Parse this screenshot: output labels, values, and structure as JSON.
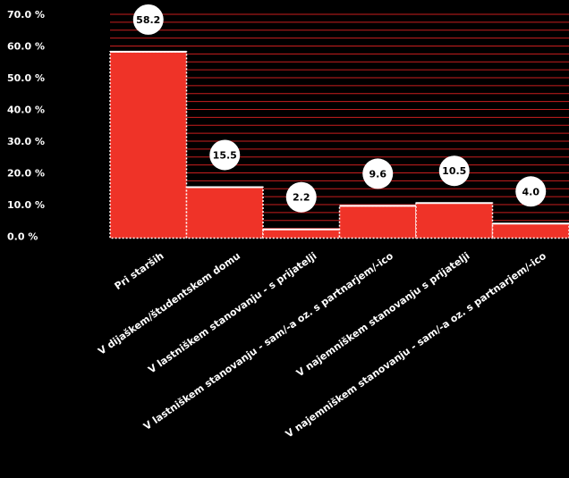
{
  "chart_data": {
    "type": "bar",
    "categories": [
      "Pri starših",
      "V dijaškem/študentskem domu",
      "V lastniškem stanovanju - s prijatelji",
      "V lastniškem stanovanju - sam/-a oz. s partnarjem/-ico",
      "V najemniškem stanovanju s prijatelji",
      "V najemniškem stanovanju - sam/-a oz. s partnarjem/-ico"
    ],
    "values": [
      58.2,
      15.5,
      2.2,
      9.6,
      10.5,
      4.0
    ],
    "data_labels": [
      "58.2",
      "15.5",
      "2.2",
      "9.6",
      "10.5",
      "4.0"
    ],
    "y_ticks": [
      "0.0 %",
      "10.0 %",
      "20.0 %",
      "30.0 %",
      "40.0 %",
      "50.0 %",
      "60.0 %",
      "70.0 %"
    ],
    "ylim": [
      0,
      72
    ],
    "grid": true,
    "colors": {
      "background": "#000000",
      "bar": "#ef3328",
      "bar_outline": "#ffffff",
      "grid": "#c81e1e",
      "text": "#ffffff",
      "label_bubble": "#ffffff",
      "label_text": "#000000"
    }
  }
}
